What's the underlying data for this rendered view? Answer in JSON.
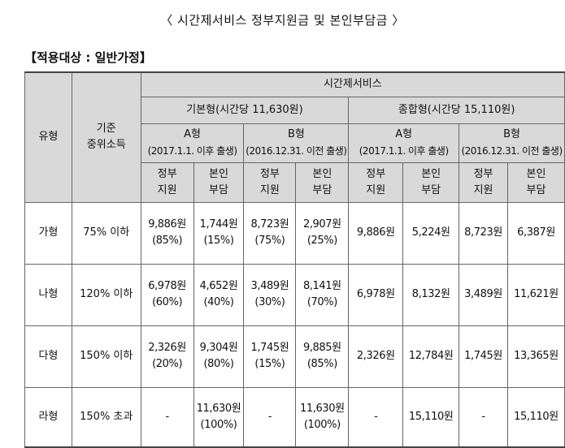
{
  "title": "〈 시간제서비스 정부지원금 및 본인부담금 〉",
  "subtitle": "【적용대상 : 일반가정】",
  "header": {
    "type": "유형",
    "income_line1": "기준",
    "income_line2": "중위소득",
    "service": "시간제서비스",
    "basic": "기본형(시간당 11,630원)",
    "comprehensive": "종합형(시간당 15,110원)",
    "a_type": "A형",
    "a_note": "(2017.1.1. 이후 출생)",
    "b_type": "B형",
    "b_note": "(2016.12.31. 이전 출생)",
    "gov_line1": "정부",
    "gov_line2": "지원",
    "self_line1": "본인",
    "self_line2": "부담"
  },
  "rows": [
    {
      "type": "가형",
      "income": "75% 이하",
      "basic_a_gov": "9,886원",
      "basic_a_gov_pct": "(85%)",
      "basic_a_self": "1,744원",
      "basic_a_self_pct": "(15%)",
      "basic_b_gov": "8,723원",
      "basic_b_gov_pct": "(75%)",
      "basic_b_self": "2,907원",
      "basic_b_self_pct": "(25%)",
      "comp_a_gov": "9,886원",
      "comp_a_self": "5,224원",
      "comp_b_gov": "8,723원",
      "comp_b_self": "6,387원"
    },
    {
      "type": "나형",
      "income": "120% 이하",
      "basic_a_gov": "6,978원",
      "basic_a_gov_pct": "(60%)",
      "basic_a_self": "4,652원",
      "basic_a_self_pct": "(40%)",
      "basic_b_gov": "3,489원",
      "basic_b_gov_pct": "(30%)",
      "basic_b_self": "8,141원",
      "basic_b_self_pct": "(70%)",
      "comp_a_gov": "6,978원",
      "comp_a_self": "8,132원",
      "comp_b_gov": "3,489원",
      "comp_b_self": "11,621원"
    },
    {
      "type": "다형",
      "income": "150% 이하",
      "basic_a_gov": "2,326원",
      "basic_a_gov_pct": "(20%)",
      "basic_a_self": "9,304원",
      "basic_a_self_pct": "(80%)",
      "basic_b_gov": "1,745원",
      "basic_b_gov_pct": "(15%)",
      "basic_b_self": "9,885원",
      "basic_b_self_pct": "(85%)",
      "comp_a_gov": "2,326원",
      "comp_a_self": "12,784원",
      "comp_b_gov": "1,745원",
      "comp_b_self": "13,365원"
    },
    {
      "type": "라형",
      "income": "150% 초과",
      "basic_a_gov": "-",
      "basic_a_gov_pct": "",
      "basic_a_self": "11,630원",
      "basic_a_self_pct": "(100%)",
      "basic_b_gov": "-",
      "basic_b_gov_pct": "",
      "basic_b_self": "11,630원",
      "basic_b_self_pct": "(100%)",
      "comp_a_gov": "-",
      "comp_a_self": "15,110원",
      "comp_b_gov": "-",
      "comp_b_self": "15,110원"
    }
  ]
}
